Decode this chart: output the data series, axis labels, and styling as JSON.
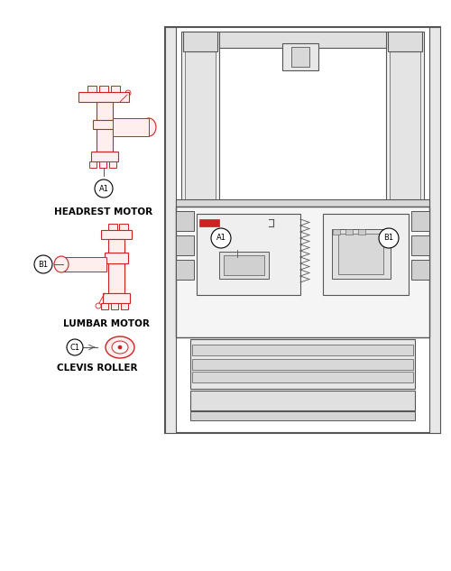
{
  "bg_color": "#ffffff",
  "line_color": "#888888",
  "dark_line": "#555555",
  "red_color": "#cc2222",
  "red_fill": "#dd4444",
  "label_A1": "A1",
  "label_B1": "B1",
  "label_C1": "C1",
  "text_headrest": "HEADREST MOTOR",
  "text_lumbar": "LUMBAR MOTOR",
  "text_clevis": "CLEVIS ROLLER",
  "font_size_label": 7.5,
  "font_size_callout": 5.5,
  "figsize": [
    5.0,
    6.33
  ],
  "dpi": 100,
  "xlim": [
    0,
    500
  ],
  "ylim": [
    633,
    0
  ]
}
